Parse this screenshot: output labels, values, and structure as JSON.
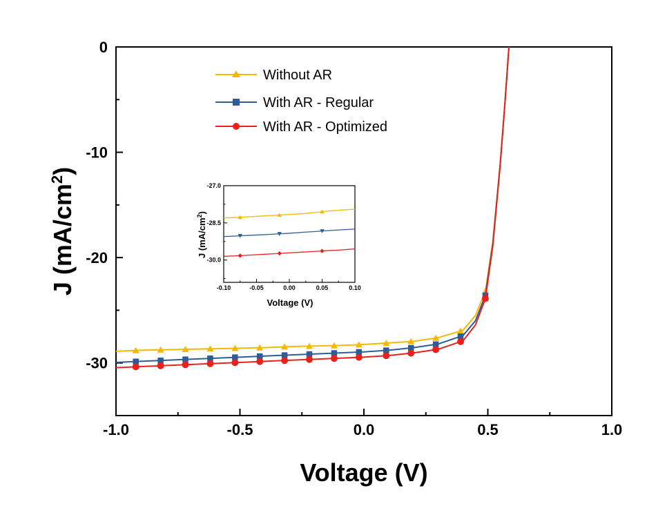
{
  "chart_data": [
    {
      "type": "line",
      "xlabel": "Voltage (V)",
      "ylabel": "J (mA/cm",
      "ylabel_sup": "2",
      "ylabel_end": ")",
      "xlim": [
        -1.0,
        1.0
      ],
      "ylim": [
        -35,
        0
      ],
      "xticks": [
        "-1.0",
        "-0.5",
        "0.0",
        "0.5",
        "1.0"
      ],
      "yticks": [
        "0",
        "-10",
        "-20",
        "-30"
      ],
      "legend_position": "top-left",
      "series": [
        {
          "name": "Without AR",
          "color": "#f5b800",
          "marker": "triangle",
          "x": [
            -1.0,
            -0.9,
            -0.8,
            -0.7,
            -0.6,
            -0.5,
            -0.4,
            -0.3,
            -0.2,
            -0.1,
            0.0,
            0.1,
            0.2,
            0.3,
            0.4,
            0.45,
            0.49,
            0.52,
            0.55,
            0.57,
            0.585
          ],
          "y": [
            -28.9,
            -28.8,
            -28.75,
            -28.7,
            -28.65,
            -28.6,
            -28.55,
            -28.45,
            -28.4,
            -28.35,
            -28.25,
            -28.1,
            -27.95,
            -27.6,
            -26.9,
            -25.5,
            -23.2,
            -18.5,
            -11.0,
            -5.0,
            0.0
          ],
          "marker_x": [
            -0.92,
            -0.82,
            -0.72,
            -0.62,
            -0.52,
            -0.42,
            -0.32,
            -0.22,
            -0.12,
            -0.02,
            0.09,
            0.19,
            0.29,
            0.39,
            0.49
          ]
        },
        {
          "name": "With AR - Regular",
          "color": "#2e5c99",
          "marker": "square",
          "x": [
            -1.0,
            -0.9,
            -0.8,
            -0.7,
            -0.6,
            -0.5,
            -0.4,
            -0.3,
            -0.2,
            -0.1,
            0.0,
            0.1,
            0.2,
            0.3,
            0.4,
            0.45,
            0.49,
            0.52,
            0.55,
            0.57,
            0.585
          ],
          "y": [
            -29.95,
            -29.85,
            -29.75,
            -29.65,
            -29.55,
            -29.45,
            -29.35,
            -29.25,
            -29.15,
            -29.05,
            -28.95,
            -28.8,
            -28.55,
            -28.2,
            -27.4,
            -26.0,
            -23.6,
            -18.7,
            -11.1,
            -5.0,
            0.0
          ],
          "marker_x": [
            -0.92,
            -0.82,
            -0.72,
            -0.62,
            -0.52,
            -0.42,
            -0.32,
            -0.22,
            -0.12,
            -0.02,
            0.09,
            0.19,
            0.29,
            0.39,
            0.49
          ]
        },
        {
          "name": "With AR - Optimized",
          "color": "#e8221b",
          "marker": "circle",
          "x": [
            -1.0,
            -0.9,
            -0.8,
            -0.7,
            -0.6,
            -0.5,
            -0.4,
            -0.3,
            -0.2,
            -0.1,
            0.0,
            0.1,
            0.2,
            0.3,
            0.4,
            0.45,
            0.49,
            0.52,
            0.55,
            0.57,
            0.585
          ],
          "y": [
            -30.45,
            -30.35,
            -30.25,
            -30.15,
            -30.05,
            -29.95,
            -29.85,
            -29.75,
            -29.65,
            -29.55,
            -29.45,
            -29.3,
            -29.05,
            -28.7,
            -27.9,
            -26.4,
            -23.9,
            -18.9,
            -11.2,
            -5.0,
            0.0
          ],
          "marker_x": [
            -0.92,
            -0.82,
            -0.72,
            -0.62,
            -0.52,
            -0.42,
            -0.32,
            -0.22,
            -0.12,
            -0.02,
            0.09,
            0.19,
            0.29,
            0.39,
            0.49
          ]
        }
      ]
    },
    {
      "type": "line",
      "xlabel": "Voltage (V)",
      "ylabel": "J (mA/cm",
      "ylabel_sup": "2",
      "ylabel_end": ")",
      "xlim": [
        -0.1,
        0.1
      ],
      "ylim": [
        -30.9,
        -27.0
      ],
      "xticks": [
        "-0.10",
        "-0.05",
        "0.00",
        "0.05",
        "0.10"
      ],
      "yticks": [
        "-27.0",
        "-28.5",
        "-30.0"
      ],
      "series": [
        {
          "name": "Without AR",
          "color": "#f5b800",
          "marker": "triangle",
          "x": [
            -0.1,
            -0.08,
            -0.06,
            -0.04,
            -0.02,
            0.0,
            0.02,
            0.04,
            0.06,
            0.08,
            0.1
          ],
          "y": [
            -28.3,
            -28.28,
            -28.25,
            -28.22,
            -28.19,
            -28.16,
            -28.13,
            -28.08,
            -28.02,
            -27.98,
            -27.95
          ],
          "marker_x": [
            -0.075,
            -0.015,
            0.05
          ]
        },
        {
          "name": "With AR - Regular",
          "color": "#2e5c99",
          "marker": "triangle-down",
          "x": [
            -0.1,
            -0.08,
            -0.06,
            -0.04,
            -0.02,
            0.0,
            0.02,
            0.04,
            0.06,
            0.08,
            0.1
          ],
          "y": [
            -29.05,
            -29.03,
            -29.0,
            -28.98,
            -28.95,
            -28.92,
            -28.88,
            -28.85,
            -28.81,
            -28.78,
            -28.75
          ],
          "marker_x": [
            -0.075,
            -0.015,
            0.05
          ]
        },
        {
          "name": "With AR - Optimized",
          "color": "#e8221b",
          "marker": "diamond",
          "x": [
            -0.1,
            -0.08,
            -0.06,
            -0.04,
            -0.02,
            0.0,
            0.02,
            0.04,
            0.06,
            0.08,
            0.1
          ],
          "y": [
            -29.85,
            -29.83,
            -29.8,
            -29.77,
            -29.74,
            -29.71,
            -29.68,
            -29.65,
            -29.62,
            -29.59,
            -29.55
          ],
          "marker_x": [
            -0.075,
            -0.015,
            0.05
          ]
        }
      ]
    }
  ]
}
